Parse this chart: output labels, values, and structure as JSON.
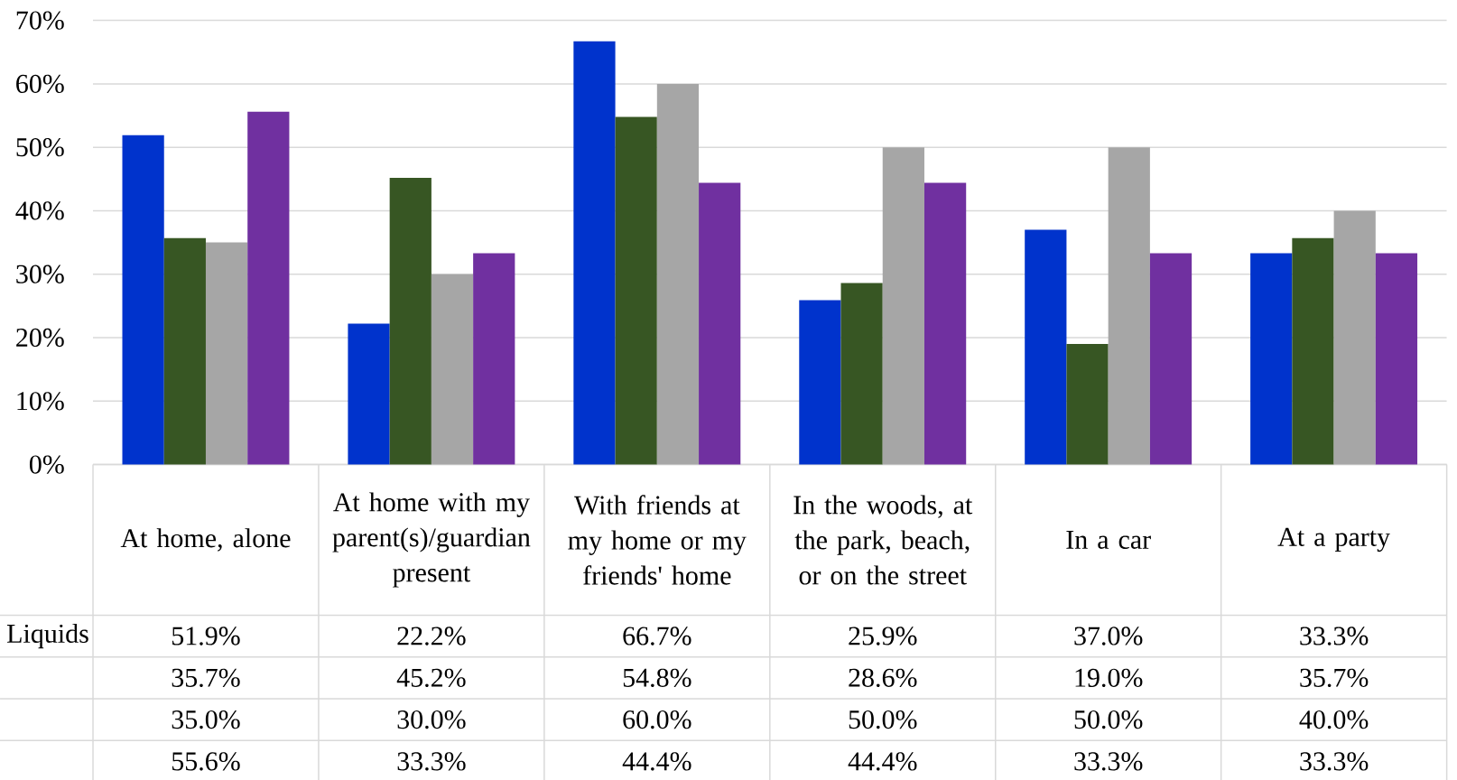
{
  "chart_data": {
    "type": "bar",
    "categories": [
      "At home, alone",
      "At home with my parent(s)/guardian present",
      "With friends at my home or my friends' home",
      "In the woods, at the park, beach, or on the street",
      "In a car",
      "At a party"
    ],
    "series": [
      {
        "name": "Liquids",
        "color": "#0033cc",
        "values": [
          51.9,
          22.2,
          66.7,
          25.9,
          37.0,
          33.3
        ],
        "value_labels": [
          "51.9%",
          "22.2%",
          "66.7%",
          "25.9%",
          "37.0%",
          "33.3%"
        ]
      },
      {
        "color": "#375623",
        "values": [
          35.7,
          45.2,
          54.8,
          28.6,
          19.0,
          35.7
        ],
        "value_labels": [
          "35.7%",
          "45.2%",
          "54.8%",
          "28.6%",
          "19.0%",
          "35.7%"
        ]
      },
      {
        "color": "#a6a6a6",
        "values": [
          35.0,
          30.0,
          60.0,
          50.0,
          50.0,
          40.0
        ],
        "value_labels": [
          "35.0%",
          "30.0%",
          "60.0%",
          "50.0%",
          "50.0%",
          "40.0%"
        ]
      },
      {
        "color": "#7030a0",
        "values": [
          55.6,
          33.3,
          44.4,
          44.4,
          33.3,
          33.3
        ],
        "value_labels": [
          "55.6%",
          "33.3%",
          "44.4%",
          "44.4%",
          "33.3%",
          "33.3%"
        ]
      }
    ],
    "ylim": [
      0,
      70
    ],
    "yticks": [
      {
        "value": 0,
        "label": "0%"
      },
      {
        "value": 10,
        "label": "10%"
      },
      {
        "value": 20,
        "label": "20%"
      },
      {
        "value": 30,
        "label": "30%"
      },
      {
        "value": 40,
        "label": "40%"
      },
      {
        "value": 50,
        "label": "50%"
      },
      {
        "value": 60,
        "label": "60%"
      },
      {
        "value": 70,
        "label": "70%"
      }
    ],
    "grid": "y"
  }
}
